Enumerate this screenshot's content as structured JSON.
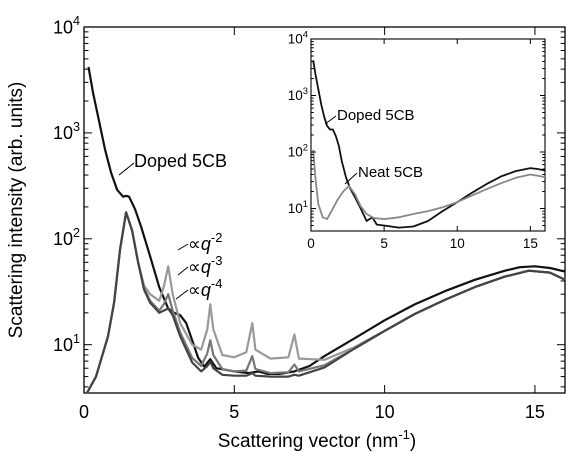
{
  "chart_data": [
    {
      "type": "line",
      "scale": "log-y",
      "xlabel": "Scattering vector (nm",
      "xlabel_exp": "-1",
      "xlabel_end": ")",
      "ylabel": "Scattering intensity (arb. units)",
      "xlim": [
        0,
        16
      ],
      "ylim": [
        3.5,
        10000
      ],
      "x_ticks": [
        0,
        5,
        10,
        15
      ],
      "y_ticks": [
        {
          "value": 10,
          "mantissa": "10",
          "exponent": "1"
        },
        {
          "value": 100,
          "mantissa": "10",
          "exponent": "2"
        },
        {
          "value": 1000,
          "mantissa": "10",
          "exponent": "3"
        },
        {
          "value": 10000,
          "mantissa": "10",
          "exponent": "4"
        }
      ],
      "grid": false,
      "annotations": {
        "doped": "Doped 5CB",
        "prop": "∝",
        "qsym": "q",
        "exp2": "-2",
        "exp3": "-3",
        "exp4": "-4"
      },
      "series": [
        {
          "name": "Doped 5CB",
          "color": "#111111",
          "points": [
            [
              0.15,
              4200
            ],
            [
              0.3,
              2400
            ],
            [
              0.5,
              1300
            ],
            [
              0.7,
              700
            ],
            [
              0.9,
              420
            ],
            [
              1.1,
              290
            ],
            [
              1.3,
              250
            ],
            [
              1.4,
              255
            ],
            [
              1.5,
              250
            ],
            [
              1.7,
              190
            ],
            [
              1.9,
              130
            ],
            [
              2.1,
              85
            ],
            [
              2.3,
              55
            ],
            [
              2.5,
              35
            ],
            [
              2.8,
              22
            ],
            [
              3.0,
              20
            ],
            [
              3.2,
              19
            ],
            [
              3.4,
              16
            ],
            [
              3.6,
              11
            ],
            [
              3.8,
              7.5
            ],
            [
              4.0,
              6.2
            ],
            [
              4.2,
              7.3
            ],
            [
              4.4,
              6.0
            ],
            [
              5.0,
              5.6
            ],
            [
              5.5,
              5.4
            ],
            [
              5.8,
              5.6
            ],
            [
              6.1,
              5.3
            ],
            [
              6.5,
              5.3
            ],
            [
              7.0,
              5.6
            ],
            [
              7.5,
              6.3
            ],
            [
              8,
              7.8
            ],
            [
              9,
              11.5
            ],
            [
              10,
              17
            ],
            [
              11,
              24
            ],
            [
              12,
              32
            ],
            [
              13,
              41
            ],
            [
              14,
              50
            ],
            [
              14.5,
              54
            ],
            [
              15,
              55
            ],
            [
              15.5,
              53
            ],
            [
              16,
              49
            ]
          ]
        },
        {
          "name": "∝q^-2",
          "color": "#999999",
          "points": [
            [
              0.1,
              3.5
            ],
            [
              0.4,
              5
            ],
            [
              0.8,
              12
            ],
            [
              1.0,
              25
            ],
            [
              1.2,
              80
            ],
            [
              1.4,
              178
            ],
            [
              1.6,
              120
            ],
            [
              1.8,
              60
            ],
            [
              2.0,
              36
            ],
            [
              2.2,
              30
            ],
            [
              2.5,
              26
            ],
            [
              2.65,
              35
            ],
            [
              2.8,
              55
            ],
            [
              2.95,
              30
            ],
            [
              3.2,
              16
            ],
            [
              3.6,
              10
            ],
            [
              3.9,
              9
            ],
            [
              4.1,
              14
            ],
            [
              4.2,
              24
            ],
            [
              4.3,
              14
            ],
            [
              4.6,
              8
            ],
            [
              5.0,
              7.6
            ],
            [
              5.4,
              8.5
            ],
            [
              5.6,
              16
            ],
            [
              5.7,
              9
            ],
            [
              6.2,
              7.4
            ],
            [
              6.8,
              7.6
            ],
            [
              7.0,
              12.5
            ],
            [
              7.15,
              7.4
            ],
            [
              8,
              7.2
            ],
            [
              9,
              9.5
            ],
            [
              10,
              13.5
            ],
            [
              11,
              19.5
            ],
            [
              12,
              26.5
            ],
            [
              13,
              35
            ],
            [
              14,
              44
            ],
            [
              14.8,
              50
            ],
            [
              15.5,
              48
            ],
            [
              16,
              41
            ]
          ]
        },
        {
          "name": "∝q^-3",
          "color": "#777777",
          "points": [
            [
              0.1,
              3.5
            ],
            [
              0.4,
              5
            ],
            [
              0.8,
              12
            ],
            [
              1.0,
              25
            ],
            [
              1.2,
              80
            ],
            [
              1.4,
              178
            ],
            [
              1.6,
              120
            ],
            [
              1.8,
              60
            ],
            [
              2.0,
              34
            ],
            [
              2.2,
              26
            ],
            [
              2.5,
              21
            ],
            [
              2.65,
              24
            ],
            [
              2.8,
              30
            ],
            [
              2.95,
              21
            ],
            [
              3.2,
              13
            ],
            [
              3.6,
              7.5
            ],
            [
              3.9,
              6.3
            ],
            [
              4.1,
              8.3
            ],
            [
              4.2,
              11
            ],
            [
              4.3,
              8
            ],
            [
              4.6,
              5.9
            ],
            [
              5.0,
              5.6
            ],
            [
              5.4,
              5.7
            ],
            [
              5.6,
              7.8
            ],
            [
              5.7,
              5.9
            ],
            [
              6.2,
              5.4
            ],
            [
              6.8,
              5.5
            ],
            [
              7.0,
              6.5
            ],
            [
              7.15,
              5.6
            ],
            [
              8,
              6.4
            ],
            [
              9,
              9.2
            ],
            [
              10,
              13.5
            ],
            [
              11,
              19.5
            ],
            [
              12,
              26.5
            ],
            [
              13,
              35
            ],
            [
              14,
              44
            ],
            [
              14.8,
              50
            ],
            [
              15.5,
              48
            ],
            [
              16,
              41
            ]
          ]
        },
        {
          "name": "∝q^-4",
          "color": "#444444",
          "points": [
            [
              0.1,
              3.5
            ],
            [
              0.4,
              5
            ],
            [
              0.8,
              12
            ],
            [
              1.0,
              25
            ],
            [
              1.2,
              80
            ],
            [
              1.4,
              178
            ],
            [
              1.6,
              120
            ],
            [
              1.8,
              60
            ],
            [
              2.0,
              33
            ],
            [
              2.2,
              25
            ],
            [
              2.5,
              20
            ],
            [
              2.65,
              21
            ],
            [
              2.8,
              22
            ],
            [
              2.95,
              19
            ],
            [
              3.2,
              12
            ],
            [
              3.6,
              6.8
            ],
            [
              3.9,
              5.6
            ],
            [
              4.1,
              6.3
            ],
            [
              4.2,
              6.9
            ],
            [
              4.3,
              6.0
            ],
            [
              4.6,
              5.2
            ],
            [
              5.0,
              5.1
            ],
            [
              5.4,
              5.1
            ],
            [
              5.6,
              5.4
            ],
            [
              5.7,
              5.1
            ],
            [
              6.2,
              5.0
            ],
            [
              6.8,
              5.0
            ],
            [
              7.0,
              5.2
            ],
            [
              7.15,
              5.1
            ],
            [
              8,
              6.1
            ],
            [
              9,
              9.2
            ],
            [
              10,
              13.5
            ],
            [
              11,
              19.5
            ],
            [
              12,
              26.5
            ],
            [
              13,
              35
            ],
            [
              14,
              44
            ],
            [
              14.8,
              50
            ],
            [
              15.5,
              48
            ],
            [
              16,
              41
            ]
          ]
        }
      ]
    },
    {
      "type": "line",
      "scale": "log-y",
      "inset": true,
      "xlim": [
        0,
        16
      ],
      "ylim": [
        4,
        10000
      ],
      "x_ticks": [
        0,
        5,
        10,
        15
      ],
      "y_ticks": [
        {
          "value": 10,
          "mantissa": "10",
          "exponent": "1"
        },
        {
          "value": 100,
          "mantissa": "10",
          "exponent": "2"
        },
        {
          "value": 1000,
          "mantissa": "10",
          "exponent": "3"
        },
        {
          "value": 10000,
          "mantissa": "10",
          "exponent": "4"
        }
      ],
      "annotations": {
        "doped": "Doped 5CB",
        "neat": "Neat 5CB"
      },
      "series": [
        {
          "name": "Doped 5CB",
          "color": "#111111",
          "points": [
            [
              0.15,
              4200
            ],
            [
              0.3,
              2400
            ],
            [
              0.5,
              1300
            ],
            [
              0.7,
              700
            ],
            [
              0.9,
              420
            ],
            [
              1.1,
              290
            ],
            [
              1.3,
              250
            ],
            [
              1.5,
              250
            ],
            [
              1.7,
              190
            ],
            [
              1.9,
              130
            ],
            [
              2.1,
              70
            ],
            [
              2.4,
              35
            ],
            [
              2.7,
              22
            ],
            [
              3.0,
              16
            ],
            [
              3.4,
              10
            ],
            [
              3.8,
              6
            ],
            [
              4.2,
              7
            ],
            [
              4.5,
              5.2
            ],
            [
              5,
              5
            ],
            [
              6,
              4.6
            ],
            [
              7,
              4.8
            ],
            [
              8,
              6
            ],
            [
              9,
              9
            ],
            [
              10,
              13
            ],
            [
              11,
              19
            ],
            [
              12,
              27
            ],
            [
              13,
              37
            ],
            [
              14,
              46
            ],
            [
              15,
              52
            ],
            [
              15.5,
              50
            ],
            [
              16,
              47
            ]
          ]
        },
        {
          "name": "Neat 5CB",
          "color": "#888888",
          "points": [
            [
              0.15,
              110
            ],
            [
              0.3,
              35
            ],
            [
              0.5,
              12
            ],
            [
              0.8,
              7
            ],
            [
              1.1,
              6.5
            ],
            [
              1.4,
              9
            ],
            [
              1.8,
              14
            ],
            [
              2.2,
              20
            ],
            [
              2.6,
              25
            ],
            [
              3.0,
              18
            ],
            [
              3.4,
              11
            ],
            [
              3.8,
              8
            ],
            [
              4.3,
              6.8
            ],
            [
              5,
              6.5
            ],
            [
              6,
              7
            ],
            [
              7,
              8
            ],
            [
              8,
              9
            ],
            [
              9,
              10.5
            ],
            [
              10,
              13
            ],
            [
              11,
              17
            ],
            [
              12,
              22
            ],
            [
              13,
              28
            ],
            [
              14,
              35
            ],
            [
              15,
              40
            ],
            [
              15.5,
              38
            ],
            [
              16,
              36
            ]
          ]
        }
      ]
    }
  ]
}
